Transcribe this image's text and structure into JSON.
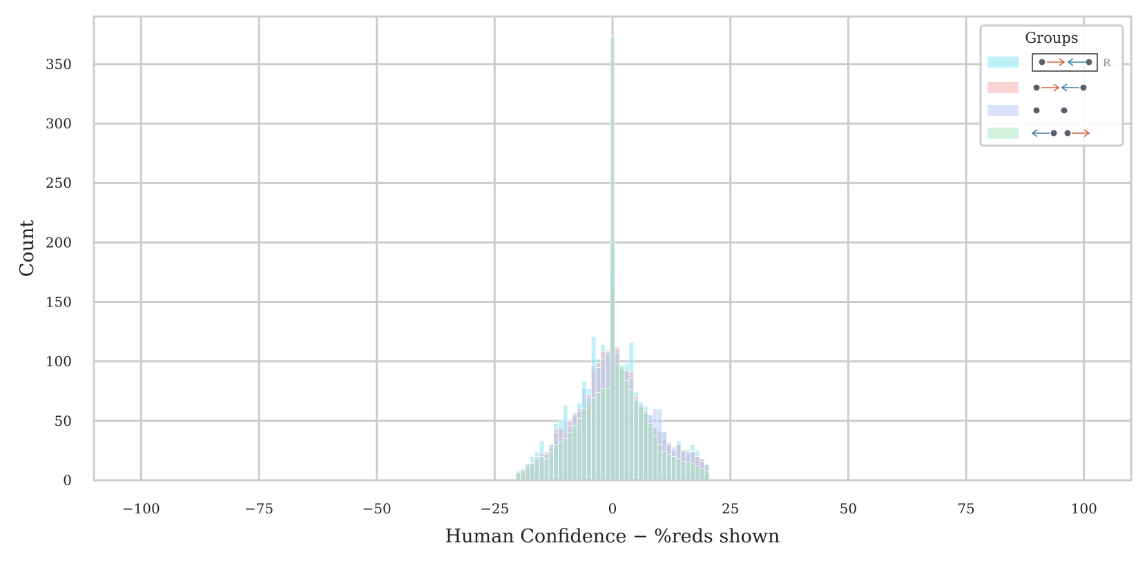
{
  "chart_data": {
    "type": "bar",
    "subtype": "overlaid-histogram",
    "xlabel": "Human Confidence − %reds shown",
    "ylabel": "Count",
    "xlim": [
      -110,
      110
    ],
    "ylim": [
      0,
      390
    ],
    "xticks": [
      -100,
      -75,
      -50,
      -25,
      0,
      25,
      50,
      75,
      100
    ],
    "xtick_labels": [
      "−100",
      "−75",
      "−50",
      "−25",
      "0",
      "25",
      "50",
      "75",
      "100"
    ],
    "yticks": [
      0,
      50,
      100,
      150,
      200,
      250,
      300,
      350
    ],
    "ytick_labels": [
      "0",
      "50",
      "100",
      "150",
      "200",
      "250",
      "300",
      "350"
    ],
    "grid": true,
    "bin_width": 1,
    "legend": {
      "title": "Groups",
      "placement": "top-right",
      "entries": [
        {
          "symbol": "●→←●",
          "annotation": "R",
          "boxed": true
        },
        {
          "symbol": "●→←●"
        },
        {
          "symbol": "●  ●"
        },
        {
          "symbol": "←● ●→"
        }
      ]
    },
    "series": [
      {
        "color": "#7ee6ee",
        "points": [
          [
            -20,
            8
          ],
          [
            -19,
            10
          ],
          [
            -18,
            14
          ],
          [
            -17,
            20
          ],
          [
            -16,
            24
          ],
          [
            -15,
            33
          ],
          [
            -14,
            22
          ],
          [
            -13,
            30
          ],
          [
            -12,
            48
          ],
          [
            -11,
            50
          ],
          [
            -10,
            63
          ],
          [
            -9,
            50
          ],
          [
            -8,
            57
          ],
          [
            -7,
            65
          ],
          [
            -6,
            83
          ],
          [
            -5,
            77
          ],
          [
            -4,
            121
          ],
          [
            -3,
            102
          ],
          [
            -2,
            114
          ],
          [
            -1,
            105
          ],
          [
            0,
            176
          ],
          [
            1,
            110
          ],
          [
            2,
            97
          ],
          [
            3,
            98
          ],
          [
            4,
            116
          ],
          [
            5,
            74
          ],
          [
            6,
            66
          ],
          [
            7,
            62
          ],
          [
            8,
            55
          ],
          [
            9,
            44
          ],
          [
            10,
            42
          ],
          [
            11,
            40
          ],
          [
            12,
            29
          ],
          [
            13,
            25
          ],
          [
            14,
            33
          ],
          [
            15,
            24
          ],
          [
            16,
            26
          ],
          [
            17,
            30
          ],
          [
            18,
            25
          ],
          [
            19,
            18
          ],
          [
            20,
            14
          ]
        ]
      },
      {
        "color": "#f4a9a9",
        "points": [
          [
            -20,
            7
          ],
          [
            -19,
            9
          ],
          [
            -18,
            13
          ],
          [
            -17,
            14
          ],
          [
            -16,
            19
          ],
          [
            -15,
            22
          ],
          [
            -14,
            24
          ],
          [
            -13,
            27
          ],
          [
            -12,
            43
          ],
          [
            -11,
            44
          ],
          [
            -10,
            40
          ],
          [
            -9,
            49
          ],
          [
            -8,
            55
          ],
          [
            -7,
            60
          ],
          [
            -6,
            60
          ],
          [
            -5,
            72
          ],
          [
            -4,
            92
          ],
          [
            -3,
            99
          ],
          [
            -2,
            108
          ],
          [
            -1,
            110
          ],
          [
            0,
            160
          ],
          [
            1,
            112
          ],
          [
            2,
            93
          ],
          [
            3,
            92
          ],
          [
            4,
            91
          ],
          [
            5,
            70
          ],
          [
            6,
            64
          ],
          [
            7,
            58
          ],
          [
            8,
            50
          ],
          [
            9,
            44
          ],
          [
            10,
            41
          ],
          [
            11,
            34
          ],
          [
            12,
            30
          ],
          [
            13,
            25
          ],
          [
            14,
            30
          ],
          [
            15,
            25
          ],
          [
            16,
            22
          ],
          [
            17,
            24
          ],
          [
            18,
            20
          ],
          [
            19,
            18
          ],
          [
            20,
            13
          ]
        ]
      },
      {
        "color": "#b5c7f3",
        "points": [
          [
            -20,
            7
          ],
          [
            -19,
            9
          ],
          [
            -18,
            14
          ],
          [
            -17,
            15
          ],
          [
            -16,
            20
          ],
          [
            -15,
            23
          ],
          [
            -14,
            22
          ],
          [
            -13,
            30
          ],
          [
            -12,
            40
          ],
          [
            -11,
            44
          ],
          [
            -10,
            50
          ],
          [
            -9,
            45
          ],
          [
            -8,
            55
          ],
          [
            -7,
            58
          ],
          [
            -6,
            78
          ],
          [
            -5,
            70
          ],
          [
            -4,
            97
          ],
          [
            -3,
            95
          ],
          [
            -2,
            102
          ],
          [
            -1,
            108
          ],
          [
            0,
            200
          ],
          [
            1,
            107
          ],
          [
            2,
            94
          ],
          [
            3,
            92
          ],
          [
            4,
            86
          ],
          [
            5,
            67
          ],
          [
            6,
            64
          ],
          [
            7,
            58
          ],
          [
            8,
            55
          ],
          [
            9,
            60
          ],
          [
            10,
            60
          ],
          [
            11,
            41
          ],
          [
            12,
            32
          ],
          [
            13,
            28
          ],
          [
            14,
            30
          ],
          [
            15,
            25
          ],
          [
            16,
            24
          ],
          [
            17,
            24
          ],
          [
            18,
            20
          ],
          [
            19,
            16
          ],
          [
            20,
            13
          ]
        ]
      },
      {
        "color": "#a8e4c0",
        "points": [
          [
            -20,
            6
          ],
          [
            -19,
            8
          ],
          [
            -18,
            12
          ],
          [
            -17,
            14
          ],
          [
            -16,
            18
          ],
          [
            -15,
            20
          ],
          [
            -14,
            18
          ],
          [
            -13,
            24
          ],
          [
            -12,
            30
          ],
          [
            -11,
            32
          ],
          [
            -10,
            35
          ],
          [
            -9,
            40
          ],
          [
            -8,
            46
          ],
          [
            -7,
            52
          ],
          [
            -6,
            60
          ],
          [
            -5,
            66
          ],
          [
            -4,
            70
          ],
          [
            -3,
            74
          ],
          [
            -2,
            77
          ],
          [
            -1,
            77
          ],
          [
            0,
            373
          ],
          [
            1,
            98
          ],
          [
            2,
            96
          ],
          [
            3,
            84
          ],
          [
            4,
            76
          ],
          [
            5,
            68
          ],
          [
            6,
            62
          ],
          [
            7,
            56
          ],
          [
            8,
            48
          ],
          [
            9,
            38
          ],
          [
            10,
            30
          ],
          [
            11,
            24
          ],
          [
            12,
            22
          ],
          [
            13,
            20
          ],
          [
            14,
            18
          ],
          [
            15,
            16
          ],
          [
            16,
            15
          ],
          [
            17,
            14
          ],
          [
            18,
            12
          ],
          [
            19,
            10
          ],
          [
            20,
            8
          ]
        ]
      }
    ]
  }
}
